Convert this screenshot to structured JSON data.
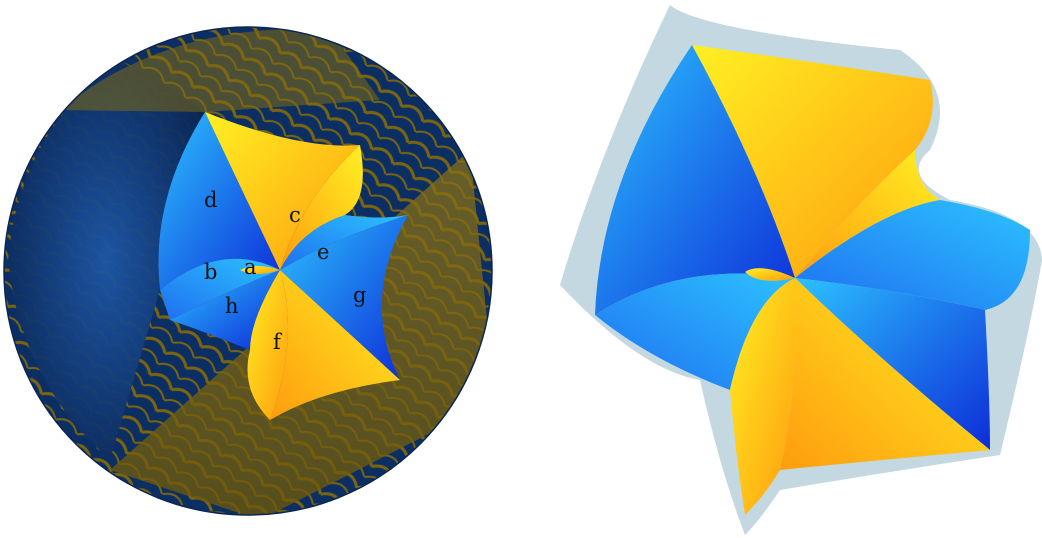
{
  "colors": {
    "navy": "#0c2f63",
    "olive": "#7a6410",
    "deep_blue": "#0d2cd8",
    "mid_blue": "#1f6ff0",
    "sky_blue": "#2cc2ff",
    "yellow": "#fff023",
    "orange": "#ff9c0e",
    "halo": "#b9d1dc",
    "halo_warm": "#e3dbb3"
  },
  "left_panel": {
    "labels": {
      "a": "a",
      "b": "b",
      "c": "c",
      "d": "d",
      "e": "e",
      "f": "f",
      "g": "g",
      "h": "h"
    }
  }
}
